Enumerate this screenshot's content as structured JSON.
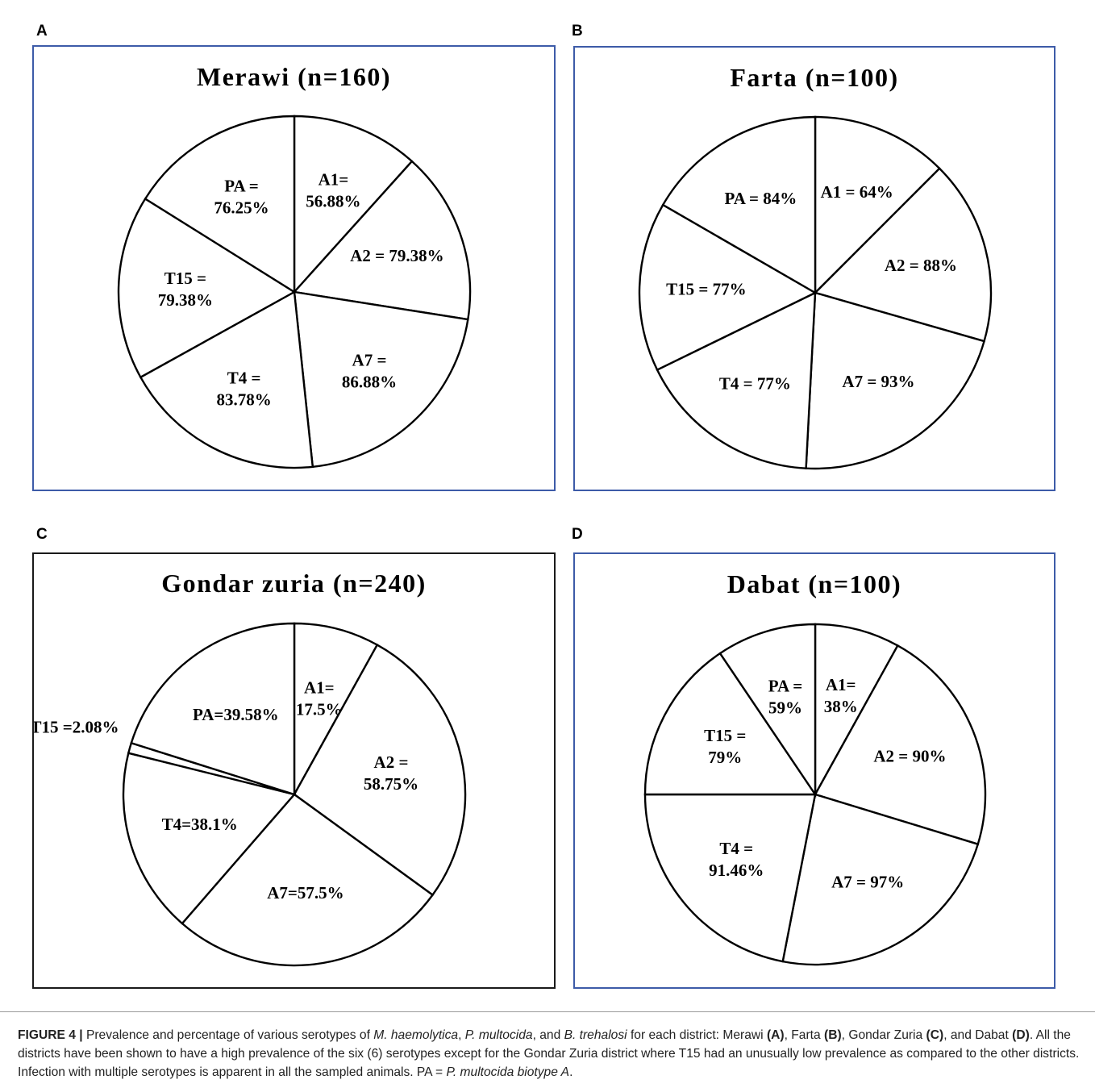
{
  "panels": [
    {
      "letter": "A",
      "frame": "#3d5ba8",
      "chart_data": {
        "type": "pie",
        "title": "Merawi (n=160)",
        "start_angle_deg": 0,
        "slices": [
          {
            "lines": [
              "A1=",
              "56.88%"
            ],
            "angle_deg": 42
          },
          {
            "lines": [
              "A2 = 79.38%"
            ],
            "angle_deg": 57
          },
          {
            "lines": [
              "A7 =",
              "86.88%"
            ],
            "angle_deg": 75
          },
          {
            "lines": [
              "T4 =",
              "83.78%"
            ],
            "angle_deg": 67
          },
          {
            "lines": [
              "T15 =",
              "79.38%"
            ],
            "angle_deg": 61
          },
          {
            "lines": [
              "PA =",
              "76.25%"
            ],
            "angle_deg": 58
          }
        ]
      }
    },
    {
      "letter": "B",
      "frame": "#3d5ba8",
      "chart_data": {
        "type": "pie",
        "title": "Farta (n=100)",
        "start_angle_deg": 0,
        "slices": [
          {
            "lines": [
              "A1 = 64%"
            ],
            "angle_deg": 45
          },
          {
            "lines": [
              "A2 = 88%"
            ],
            "angle_deg": 61
          },
          {
            "lines": [
              "A7 = 93%"
            ],
            "angle_deg": 77
          },
          {
            "lines": [
              "T4 = 77%"
            ],
            "angle_deg": 61
          },
          {
            "lines": [
              "T15 = 77%"
            ],
            "angle_deg": 56
          },
          {
            "lines": [
              "PA = 84%"
            ],
            "angle_deg": 60
          }
        ]
      }
    },
    {
      "letter": "C",
      "frame": "#1a1a1a",
      "chart_data": {
        "type": "pie",
        "title": "Gondar zuria (n=240)",
        "start_angle_deg": 0,
        "slices": [
          {
            "lines": [
              "A1=",
              "17.5%"
            ],
            "angle_deg": 29
          },
          {
            "lines": [
              "A2 =",
              "58.75%"
            ],
            "angle_deg": 97
          },
          {
            "lines": [
              "A7=57.5%"
            ],
            "angle_deg": 95
          },
          {
            "lines": [
              "T4=38.1%"
            ],
            "angle_deg": 63
          },
          {
            "lines": [
              "T15 =2.08%"
            ],
            "angle_deg": 3.5,
            "outside": true
          },
          {
            "lines": [
              "PA=39.58%"
            ],
            "angle_deg": 72.5
          }
        ]
      }
    },
    {
      "letter": "D",
      "frame": "#3d5ba8",
      "chart_data": {
        "type": "pie",
        "title": "Dabat (n=100)",
        "start_angle_deg": 0,
        "slices": [
          {
            "lines": [
              "A1=",
              "38%"
            ],
            "angle_deg": 29
          },
          {
            "lines": [
              "A2 = 90%"
            ],
            "angle_deg": 78
          },
          {
            "lines": [
              "A7 = 97%"
            ],
            "angle_deg": 84
          },
          {
            "lines": [
              "T4 =",
              "91.46%"
            ],
            "angle_deg": 79
          },
          {
            "lines": [
              "T15 =",
              "79%"
            ],
            "angle_deg": 56
          },
          {
            "lines": [
              "PA =",
              "59%"
            ],
            "angle_deg": 34
          }
        ]
      }
    }
  ],
  "caption": {
    "label": "FIGURE 4 |",
    "s1": " Prevalence and percentage of various serotypes of ",
    "i1": "M. haemolytica",
    "s2": ", ",
    "i2": "P. multocida",
    "s3": ", and ",
    "i3": "B. trehalosi",
    "s4": " for each district: Merawi ",
    "b1": "(A)",
    "s5": ", Farta ",
    "b2": "(B)",
    "s6": ", Gondar Zuria ",
    "b3": "(C)",
    "s7": ", and Dabat ",
    "b4": "(D)",
    "s8": ". All the districts have been shown to have a high prevalence of the six (6) serotypes except for the Gondar Zuria district where T15 had an unusually low prevalence as compared to the other districts. Infection with multiple serotypes is apparent in all the sampled animals. PA = ",
    "i4": "P. multocida biotype A",
    "s9": "."
  }
}
